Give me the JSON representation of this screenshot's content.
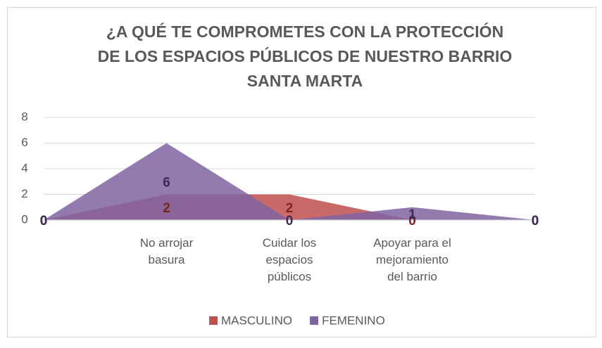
{
  "chart_data": {
    "type": "area",
    "title": "¿A QUÉ TE COMPROMETES CON LA PROTECCIÓN DE LOS ESPACIOS PÚBLICOS DE NUESTRO BARRIO SANTA MARTA",
    "categories": [
      null,
      "No arrojar basura",
      "Cuidar los espacios públicos",
      "Apoyar para el mejoramiento del barrio",
      null
    ],
    "series": [
      {
        "name": "MASCULINO",
        "color": "#c0504d",
        "label_color": "#7b2523",
        "values": [
          0,
          2,
          2,
          0,
          0
        ]
      },
      {
        "name": "FEMENINO",
        "color": "#8064a2",
        "label_color": "#3b2c57",
        "values": [
          0,
          6,
          0,
          1,
          0
        ]
      }
    ],
    "ylim": [
      0,
      8
    ],
    "yticks": [
      0,
      2,
      4,
      6,
      8
    ],
    "grid": true,
    "legend": "bottom"
  }
}
